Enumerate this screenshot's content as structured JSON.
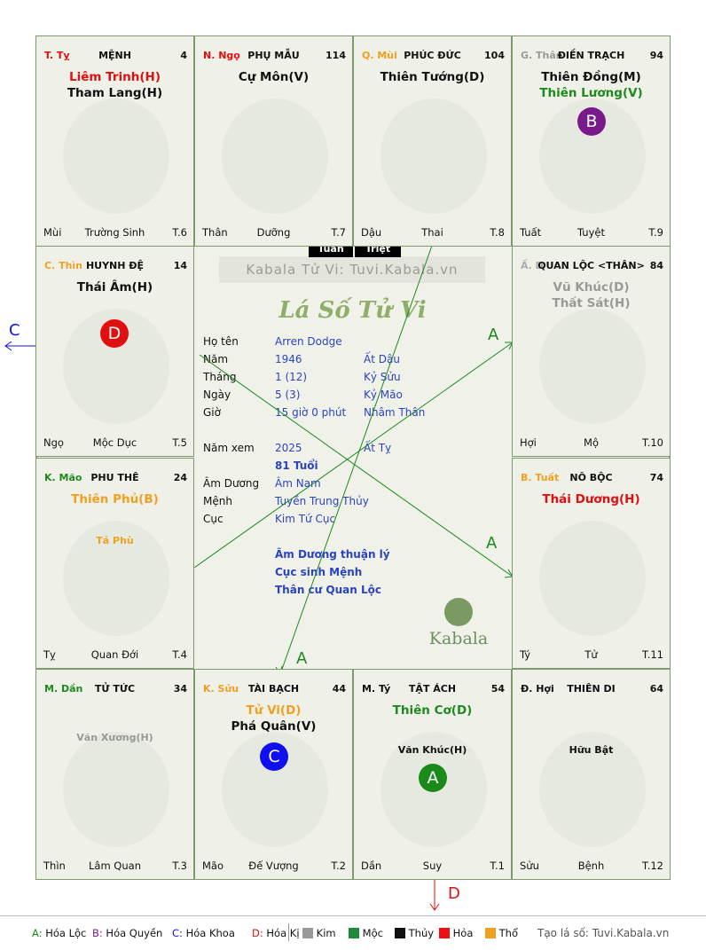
{
  "palaces": [
    {
      "branch": "T. Tỵ",
      "branch_color": "#e01010",
      "name": "MỆNH",
      "age": "4",
      "stars": [
        {
          "t": "Liêm Trinh(H)",
          "c": "#e01010"
        },
        {
          "t": "Tham Lang(H)",
          "c": "#111111"
        }
      ],
      "minor": [],
      "circle": null,
      "bottom": {
        "left": "Mùi",
        "center": "Trường Sinh",
        "right": "T.6"
      }
    },
    {
      "branch": "N. Ngọ",
      "branch_color": "#e01010",
      "name": "PHỤ MẪU",
      "age": "114",
      "stars": [
        {
          "t": "Cự Môn(V)",
          "c": "#111111"
        }
      ],
      "minor": [],
      "circle": null,
      "bottom": {
        "left": "Thân",
        "center": "Dưỡng",
        "right": "T.7"
      }
    },
    {
      "branch": "Q. Mùi",
      "branch_color": "#f0a020",
      "name": "PHÚC ĐỨC",
      "age": "104",
      "stars": [
        {
          "t": "Thiên Tướng(D)",
          "c": "#111111"
        }
      ],
      "minor": [],
      "circle": null,
      "bottom": {
        "left": "Dậu",
        "center": "Thai",
        "right": "T.8"
      }
    },
    {
      "branch": "G. Thân",
      "branch_color": "#999999",
      "name": "ĐIỀN TRẠCH",
      "age": "94",
      "stars": [
        {
          "t": "Thiên Đồng(M)",
          "c": "#111111"
        },
        {
          "t": "Thiên Lương(V)",
          "c": "#1e8a1e"
        }
      ],
      "minor": [],
      "circle": {
        "t": "B",
        "c": "#7a1a8a"
      },
      "bottom": {
        "left": "Tuất",
        "center": "Tuyệt",
        "right": "T.9"
      }
    },
    {
      "branch": "C. Thìn",
      "branch_color": "#f0a020",
      "name": "HUYNH ĐỆ",
      "age": "14",
      "stars": [
        {
          "t": "Thái Âm(H)",
          "c": "#111111"
        }
      ],
      "minor": [],
      "circle": {
        "t": "D",
        "c": "#e01010"
      },
      "bottom": {
        "left": "Ngọ",
        "center": "Mộc Dục",
        "right": "T.5"
      }
    },
    {
      "branch": "Ấ. D",
      "branch_color": "#aaaaaa",
      "name": "QUAN LỘC <THÂN>",
      "age": "84",
      "stars": [
        {
          "t": "Vũ Khúc(D)",
          "c": "#999999"
        },
        {
          "t": "Thất Sát(H)",
          "c": "#999999"
        }
      ],
      "minor": [],
      "circle": null,
      "bottom": {
        "left": "Hợi",
        "center": "Mộ",
        "right": "T.10"
      }
    },
    {
      "branch": "K. Mão",
      "branch_color": "#1e8a1e",
      "name": "PHU THÊ",
      "age": "24",
      "stars": [
        {
          "t": "Thiên Phủ(B)",
          "c": "#f0a020"
        }
      ],
      "minor": [
        {
          "t": "Tả Phù",
          "c": "#f0a020"
        }
      ],
      "circle": null,
      "bottom": {
        "left": "Tỵ",
        "center": "Quan Đới",
        "right": "T.4"
      }
    },
    {
      "branch": "B. Tuất",
      "branch_color": "#f0a020",
      "name": "NÔ BỘC",
      "age": "74",
      "stars": [
        {
          "t": "Thái Dương(H)",
          "c": "#e01010"
        }
      ],
      "minor": [],
      "circle": null,
      "bottom": {
        "left": "Tý",
        "center": "Tử",
        "right": "T.11"
      }
    },
    {
      "branch": "M. Dần",
      "branch_color": "#1e8a1e",
      "name": "TỬ TỨC",
      "age": "34",
      "stars": [],
      "minor": [
        {
          "t": "Văn Xương(H)",
          "c": "#999999"
        }
      ],
      "circle": null,
      "bottom": {
        "left": "Thìn",
        "center": "Lâm Quan",
        "right": "T.3"
      }
    },
    {
      "branch": "K. Sửu",
      "branch_color": "#f0a020",
      "name": "TÀI BẠCH",
      "age": "44",
      "stars": [
        {
          "t": "Tử Vi(D)",
          "c": "#f0a020"
        },
        {
          "t": "Phá Quân(V)",
          "c": "#111111"
        }
      ],
      "minor": [],
      "circle": {
        "t": "C",
        "c": "#1010ee"
      },
      "bottom": {
        "left": "Mão",
        "center": "Đế Vượng",
        "right": "T.2"
      }
    },
    {
      "branch": "M. Tý",
      "branch_color": "#111111",
      "name": "TẬT ÁCH",
      "age": "54",
      "stars": [
        {
          "t": "Thiên Cơ(D)",
          "c": "#1e8a1e"
        }
      ],
      "minor": [
        {
          "t": "Văn Khúc(H)",
          "c": "#111111"
        }
      ],
      "circle": {
        "t": "A",
        "c": "#1a8a1a"
      },
      "bottom": {
        "left": "Dần",
        "center": "Suy",
        "right": "T.1"
      }
    },
    {
      "branch": "Đ. Hợi",
      "branch_color": "#111111",
      "name": "THIÊN DI",
      "age": "64",
      "stars": [],
      "minor": [
        {
          "t": "Hữu Bật",
          "c": "#111111"
        }
      ],
      "circle": null,
      "bottom": {
        "left": "Sửu",
        "center": "Bệnh",
        "right": "T.12"
      }
    }
  ],
  "center": {
    "watermark": "Kabala Tử Vi: Tuvi.Kabala.vn",
    "title": "Lá Số Tử Vi",
    "tuan": "Tuần",
    "triet": "Triệt",
    "labels": {
      "name": "Họ tên",
      "year": "Năm",
      "month": "Tháng",
      "day": "Ngày",
      "hour": "Giờ",
      "view_year": "Năm xem",
      "amduong": "Âm Dương",
      "menh": "Mệnh",
      "cuc": "Cục"
    },
    "values": {
      "name": "Arren Dodge",
      "year": "1946",
      "year_can": "Ất Dậu",
      "month": "1  (12)",
      "month_can": "Kỷ Sửu",
      "day": "5  (3)",
      "day_can": "Kỷ Mão",
      "hour": "15 giờ 0 phút",
      "hour_can": "Nhâm Thân",
      "view_year": "2025",
      "view_can": "Ất Tỵ",
      "age": "81 Tuổi",
      "amduong": "Âm Nam",
      "menh": "Tuyền Trung Thủy",
      "cuc": "Kim Tứ Cục"
    },
    "notes": [
      "Âm Dương thuận lý",
      "Cục sinh Mệnh",
      "Thân cư Quan Lộc"
    ],
    "logo": "Kabala"
  },
  "arrow_labels": {
    "c": "C",
    "d": "D",
    "a": "A"
  },
  "legend": {
    "hoa": [
      {
        "k": "A:",
        "t": "Hóa Lộc",
        "c": "#1a8a1a"
      },
      {
        "k": "B:",
        "t": "Hóa Quyền",
        "c": "#7a1a8a"
      },
      {
        "k": "C:",
        "t": "Hóa Khoa",
        "c": "#1010ee"
      },
      {
        "k": "D:",
        "t": "Hóa Kị",
        "c": "#e01010"
      }
    ],
    "elements": [
      {
        "t": "Kim",
        "c": "#999999"
      },
      {
        "t": "Mộc",
        "c": "#1e8a3e"
      },
      {
        "t": "Thủy",
        "c": "#111111"
      },
      {
        "t": "Hỏa",
        "c": "#ee1111"
      },
      {
        "t": "Thổ",
        "c": "#f0a020"
      }
    ],
    "credit": "Tạo lá số: Tuvi.Kabala.vn"
  }
}
